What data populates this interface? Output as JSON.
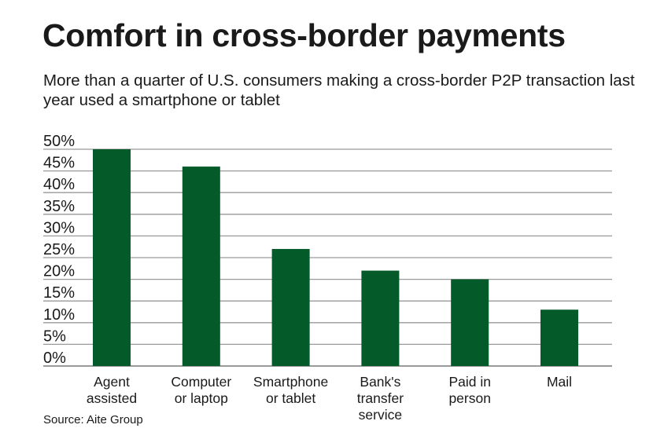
{
  "title": "Comfort in cross-border payments",
  "subtitle": "More than a quarter of U.S. consumers making a cross-border P2P transaction last year used a smartphone or tablet",
  "source": "Source: Aite Group",
  "colors": {
    "bar": "#045a29",
    "grid": "#9a9a9a"
  },
  "chart_data": {
    "type": "bar",
    "title": "Comfort in cross-border payments",
    "categories": [
      [
        "Agent",
        "assisted"
      ],
      [
        "Computer",
        "or laptop"
      ],
      [
        "Smartphone",
        "or tablet"
      ],
      [
        "Bank's",
        "transfer",
        "service"
      ],
      [
        "Paid in",
        "person"
      ],
      [
        "Mail"
      ]
    ],
    "values": [
      50,
      46,
      27,
      22,
      20,
      13
    ],
    "ylim": [
      0,
      50
    ],
    "yticks": [
      "0%",
      "5%",
      "10%",
      "15%",
      "20%",
      "25%",
      "30%",
      "35%",
      "40%",
      "45%",
      "50%"
    ],
    "grid": true,
    "xlabel": "",
    "ylabel": ""
  }
}
